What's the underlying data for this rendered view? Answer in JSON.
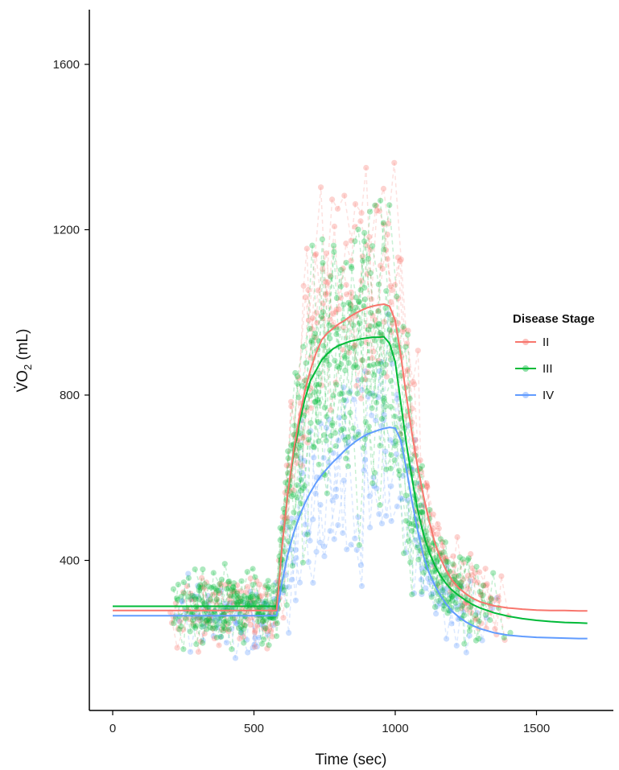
{
  "chart_data": {
    "type": "line",
    "xlabel": "Time (sec)",
    "ylabel_parts": {
      "main": "V̇O",
      "sub": "2",
      "unit": " (mL)"
    },
    "xlim": [
      -80,
      1760
    ],
    "ylim": [
      70,
      1730
    ],
    "xticks": [
      0,
      500,
      1000,
      1500
    ],
    "yticks": [
      400,
      800,
      1200,
      1600
    ],
    "grid": false,
    "legend": {
      "title": "Disease Stage",
      "position": "right"
    },
    "colors": {
      "II": "#F8766D",
      "III": "#00BA38",
      "IV": "#619CFF"
    },
    "series": [
      {
        "name": "II",
        "fit": {
          "x": [
            0,
            50,
            100,
            150,
            200,
            250,
            300,
            350,
            400,
            450,
            500,
            550,
            580,
            600,
            620,
            640,
            660,
            680,
            700,
            720,
            740,
            760,
            780,
            800,
            820,
            840,
            860,
            880,
            900,
            920,
            940,
            960,
            980,
            1000,
            1020,
            1040,
            1060,
            1080,
            1100,
            1120,
            1140,
            1160,
            1180,
            1200,
            1225,
            1250,
            1275,
            1300,
            1350,
            1400,
            1450,
            1500,
            1550,
            1600,
            1650,
            1680
          ],
          "y": [
            279,
            279,
            279,
            279,
            279,
            279,
            279,
            279,
            279,
            279,
            279,
            279,
            279,
            437,
            563,
            664,
            745,
            810,
            861,
            902,
            934,
            950,
            961,
            972,
            980,
            990,
            998,
            1005,
            1011,
            1015,
            1018,
            1020,
            1015,
            980,
            895,
            795,
            703,
            624,
            556,
            495,
            444,
            405,
            376,
            353,
            333,
            319,
            308,
            300,
            290,
            285,
            282,
            280,
            279,
            279,
            278,
            278
          ]
        },
        "scatter_points": 360
      },
      {
        "name": "III",
        "fit": {
          "x": [
            0,
            50,
            100,
            150,
            200,
            250,
            300,
            350,
            400,
            450,
            500,
            550,
            580,
            600,
            620,
            640,
            660,
            680,
            700,
            720,
            740,
            760,
            780,
            800,
            820,
            840,
            860,
            880,
            900,
            920,
            940,
            960,
            980,
            1000,
            1020,
            1040,
            1060,
            1080,
            1100,
            1120,
            1140,
            1160,
            1180,
            1200,
            1225,
            1250,
            1275,
            1300,
            1350,
            1400,
            1450,
            1500,
            1550,
            1600,
            1650,
            1680
          ],
          "y": [
            289,
            289,
            289,
            289,
            289,
            289,
            289,
            289,
            289,
            289,
            289,
            289,
            289,
            440,
            560,
            655,
            730,
            790,
            835,
            860,
            885,
            900,
            912,
            920,
            925,
            930,
            933,
            936,
            938,
            940,
            940,
            941,
            925,
            880,
            780,
            680,
            595,
            520,
            463,
            420,
            388,
            363,
            344,
            329,
            315,
            303,
            293,
            285,
            273,
            265,
            259,
            255,
            252,
            250,
            249,
            248
          ]
        },
        "scatter_points": 600
      },
      {
        "name": "IV",
        "fit": {
          "x": [
            0,
            50,
            100,
            150,
            200,
            250,
            300,
            350,
            400,
            450,
            500,
            550,
            580,
            600,
            620,
            640,
            660,
            680,
            700,
            720,
            740,
            760,
            780,
            800,
            820,
            840,
            860,
            880,
            900,
            920,
            940,
            960,
            980,
            1000,
            1020,
            1040,
            1060,
            1080,
            1100,
            1120,
            1140,
            1160,
            1180,
            1200,
            1225,
            1250,
            1275,
            1300,
            1350,
            1400,
            1450,
            1500,
            1550,
            1600,
            1650,
            1680
          ],
          "y": [
            266,
            266,
            266,
            266,
            266,
            266,
            266,
            266,
            266,
            266,
            266,
            266,
            266,
            350,
            415,
            465,
            505,
            538,
            565,
            588,
            607,
            623,
            638,
            651,
            665,
            677,
            688,
            697,
            705,
            710,
            715,
            719,
            722,
            720,
            690,
            620,
            540,
            470,
            410,
            370,
            340,
            315,
            295,
            278,
            263,
            251,
            242,
            235,
            225,
            219,
            216,
            214,
            213,
            212,
            211,
            211
          ]
        },
        "scatter_points": 240
      }
    ]
  }
}
